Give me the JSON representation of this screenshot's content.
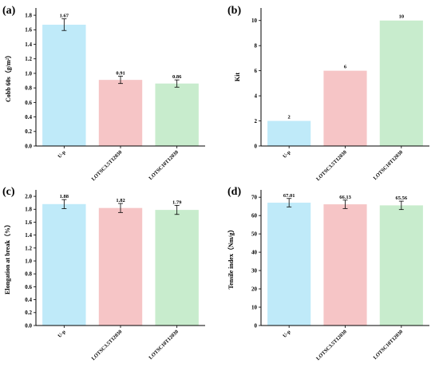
{
  "chart_data": [
    {
      "panel": "(a)",
      "type": "bar",
      "categories": [
        "U-p",
        "LOTSC3.5T12030",
        "LOTSC10T12030"
      ],
      "values": [
        1.67,
        0.91,
        0.86
      ],
      "value_labels": [
        "1.67",
        "0.91",
        "0.86"
      ],
      "errors": [
        0.08,
        0.05,
        0.05
      ],
      "colors": [
        "#bfeaf9",
        "#f6c5c6",
        "#c8eccd"
      ],
      "ylabel": "Cobb 60s（g/m²）",
      "yticks": [
        "0.0",
        "0.2",
        "0.4",
        "0.6",
        "0.8",
        "1.0",
        "1.2",
        "1.4",
        "1.6",
        "1.8"
      ],
      "ylim": [
        0,
        1.9
      ]
    },
    {
      "panel": "(b)",
      "type": "bar",
      "categories": [
        "U-p",
        "LOTSC3.5T12030",
        "LOTSC10T12030"
      ],
      "values": [
        2,
        6,
        10
      ],
      "value_labels": [
        "2",
        "6",
        "10"
      ],
      "errors": [
        0,
        0,
        0
      ],
      "colors": [
        "#bfeaf9",
        "#f6c5c6",
        "#c8eccd"
      ],
      "ylabel": "Kit",
      "yticks": [
        "0",
        "2",
        "4",
        "6",
        "8",
        "10"
      ],
      "ylim": [
        0,
        11
      ]
    },
    {
      "panel": "(c)",
      "type": "bar",
      "categories": [
        "U-p",
        "LOTSC3.5T12030",
        "LOTSC10T12030"
      ],
      "values": [
        1.88,
        1.82,
        1.79
      ],
      "value_labels": [
        "1.88",
        "1.82",
        "1.79"
      ],
      "errors": [
        0.07,
        0.07,
        0.07
      ],
      "colors": [
        "#bfeaf9",
        "#f6c5c6",
        "#c8eccd"
      ],
      "ylabel": "Elongation at break（%）",
      "yticks": [
        "0.0",
        "0.2",
        "0.4",
        "0.6",
        "0.8",
        "1.0",
        "1.2",
        "1.4",
        "1.6",
        "1.8",
        "2.0"
      ],
      "ylim": [
        0,
        2.1
      ]
    },
    {
      "panel": "(d)",
      "type": "bar",
      "categories": [
        "U-p",
        "LOTSC3.5T12030",
        "LOTSC10T12030"
      ],
      "values": [
        67.01,
        66.13,
        65.56
      ],
      "value_labels": [
        "67.01",
        "66.13",
        "65.56"
      ],
      "errors": [
        2.3,
        2.3,
        2.3
      ],
      "colors": [
        "#bfeaf9",
        "#f6c5c6",
        "#c8eccd"
      ],
      "ylabel": "Tensile index（Nm/g）",
      "yticks": [
        "0",
        "10",
        "20",
        "30",
        "40",
        "50",
        "60",
        "70"
      ],
      "ylim": [
        0,
        74
      ]
    }
  ]
}
